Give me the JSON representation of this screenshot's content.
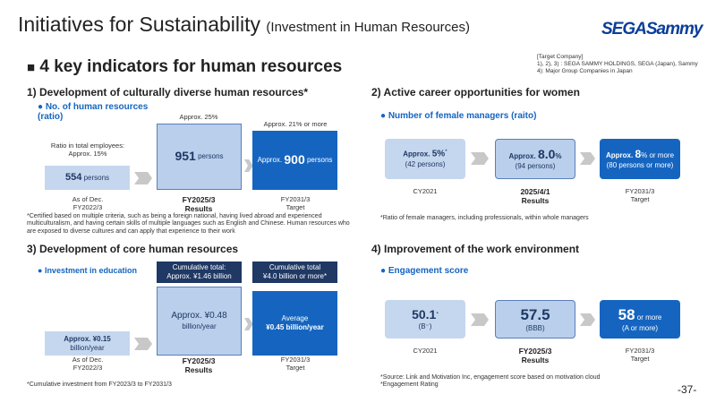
{
  "header": {
    "title": "Initiatives for Sustainability",
    "subtitle": "(Investment in Human Resources)",
    "logo": "SEGASammy",
    "heading": "4 key indicators for human resources"
  },
  "target_note": [
    "[Target Company]",
    "1), 2), 3) : SEGA SAMMY HOLDINGS, SEGA (Japan), Sammy",
    "4): Major Group Companies in Japan"
  ],
  "sections": [
    {
      "title": "1) Development of culturally diverse human resources*",
      "bullet": "No. of human resources (ratio)",
      "ratio_label": [
        "Ratio in total employees:",
        "Approx. 15%"
      ],
      "box1": [
        "554",
        "persons"
      ],
      "box2_top": "Approx. 25%",
      "box2": [
        "951",
        "persons"
      ],
      "box3_top": "Approx. 21% or more",
      "box3": [
        "Approx.",
        "900",
        "persons"
      ],
      "labels": [
        [
          "As of Dec.",
          "FY2022/3"
        ],
        [
          "FY2025/3",
          "Results"
        ],
        [
          "FY2031/3",
          "Target"
        ]
      ],
      "footnote": "*Certified based on multiple criteria, such as being a foreign national, having lived abroad and experienced multiculturalism, and having certain skills of multiple languages such as English and Chinese. Human resources who are exposed to diverse cultures and can apply that experience to their work"
    },
    {
      "title": "2) Active career opportunities for women",
      "bullet": "Number of female managers (raito)",
      "box1": [
        "Approx.",
        "5%",
        "*",
        "(42 persons)"
      ],
      "box2": [
        "Approx.",
        "8.0",
        "%",
        "(94 persons)"
      ],
      "box3": [
        "Approx.",
        "8",
        "% or more",
        "(80 persons or more)"
      ],
      "labels": [
        [
          "CY2021"
        ],
        [
          "2025/4/1",
          "Results"
        ],
        [
          "FY2031/3",
          "Target"
        ]
      ],
      "footnote": "*Ratio of female managers, including professionals, within whole managers"
    },
    {
      "title": "3) Development of core human resources",
      "bullet": "Investment in education",
      "callout1": [
        "Cumulative total:",
        "Approx. ¥1.46 billion"
      ],
      "callout2": [
        "Cumulative total",
        "¥4.0 billion or more*"
      ],
      "box1": [
        "Approx. ¥0.15",
        "billion/year"
      ],
      "box2": [
        "Approx. ¥0.48",
        "billion/year"
      ],
      "box3": [
        "Average",
        "¥0.45 billion/year"
      ],
      "labels": [
        [
          "As of Dec.",
          "FY2022/3"
        ],
        [
          "FY2025/3",
          "Results"
        ],
        [
          "FY2031/3",
          "Target"
        ]
      ],
      "footnote": "*Cumulative investment from FY2023/3 to FY2031/3"
    },
    {
      "title": "4) Improvement of the work environment",
      "bullet": "Engagement score",
      "box1": [
        "50.1",
        "*",
        "(B⁻)"
      ],
      "box2": [
        "57.5",
        "(BBB)"
      ],
      "box3": [
        "58",
        "or more",
        "(A or more)"
      ],
      "labels": [
        [
          "CY2021"
        ],
        [
          "FY2025/3",
          "Results"
        ],
        [
          "FY2031/3",
          "Target"
        ]
      ],
      "footnote": [
        "*Source: Link and Motivation Inc, engagement score based on motivation cloud",
        "*Engagement Rating"
      ]
    }
  ],
  "page_number": "-37-"
}
